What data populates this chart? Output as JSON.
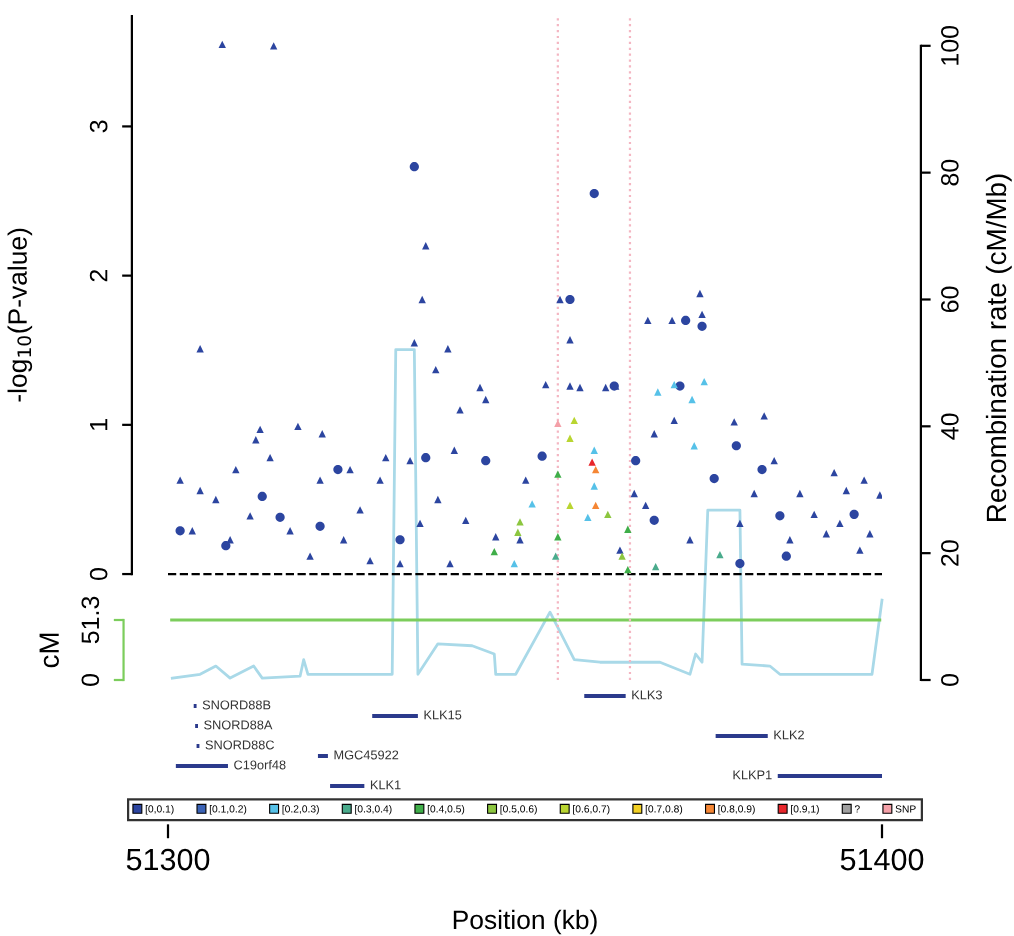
{
  "chart_data": [
    {
      "type": "scatter",
      "ylabel": "-log$_{10}$(P-value)",
      "y2label": "Recombination rate (cM/Mb)",
      "xlim": [
        51300,
        51400
      ],
      "ylim": [
        -0.71,
        3.74
      ],
      "yticks": [
        0,
        1,
        2,
        3
      ],
      "y2lim": [
        0,
        104.7
      ],
      "y2ticks": [
        0,
        20,
        40,
        60,
        80,
        100
      ],
      "tick_labels": "y",
      "legend": "bottom",
      "ref_lines": [
        {
          "axis": "y",
          "value": 0,
          "color": "#000000",
          "line_style": "dashed"
        },
        {
          "axis": "x",
          "value": 51354.6,
          "color": "#f4b6c2",
          "line_style": "dotted"
        },
        {
          "axis": "x",
          "value": 51364.7,
          "color": "#f4b6c2",
          "line_style": "dotted"
        }
      ],
      "series": [
        {
          "type": "line",
          "axis": "y2",
          "color": "#a9d9e8",
          "x": [
            51300.6,
            51304.5,
            51306.7,
            51308.7,
            51312.0,
            51313.2,
            51318.5,
            51319.0,
            51319.6,
            51321.3,
            51331.4,
            51331.9,
            51334.5,
            51335.0,
            51337.8,
            51342.6,
            51345.7,
            51345.9,
            51348.7,
            51353.5,
            51356.9,
            51360.5,
            51368.9,
            51373.1,
            51373.9,
            51374.8,
            51375.6,
            51380.1,
            51380.4,
            51384.3,
            51385.7,
            51398.6,
            51400.0
          ],
          "values": [
            0.3,
            0.9,
            2.2,
            0.3,
            2.2,
            0.3,
            0.6,
            3.2,
            0.9,
            0.9,
            0.9,
            52.1,
            52.1,
            0.9,
            5.7,
            5.4,
            4.1,
            0.9,
            0.9,
            10.7,
            3.2,
            2.8,
            2.8,
            0.9,
            4.1,
            2.8,
            26.8,
            26.8,
            2.5,
            2.2,
            0.9,
            0.9,
            12.6
          ]
        },
        {
          "name": "[0,0.1)",
          "color": "#2c45a0",
          "marker": "triangle",
          "x": [
            51307.6,
            51314.8,
            51304.5,
            51336.1,
            51335.6,
            51334.5,
            51339.2,
            51337.5,
            51312.9,
            51318.2,
            51321.6,
            51312.3,
            51301.7,
            51304.5,
            51309.5,
            51314.3,
            51321.3,
            51325.5,
            51329.7,
            51330.5,
            51343.7,
            51344.5,
            51340.9,
            51340.1,
            51341.7,
            51337.8,
            51333.9,
            51303.4,
            51308.7,
            51317.1,
            51324.6,
            51328.3,
            51332.5,
            51345.9,
            51354.9,
            51374.5,
            51374.8,
            51367.2,
            51370.6,
            51356.3,
            51352.9,
            51356.3,
            51357.7,
            51361.3,
            51362.7,
            51383.5,
            51379.3,
            51370.9,
            51368.1,
            51384.9,
            51382.1,
            51393.3,
            51395.0,
            51397.5,
            51399.7,
            51388.5,
            51390.5,
            51398.3,
            51392.2,
            51350.1,
            51365.3,
            51366.9,
            51349.3,
            51363.3,
            51373.1,
            51380.1,
            51387.1,
            51394.1,
            51396.9,
            51319.9,
            51311.5,
            51306.7,
            51326.9,
            51335.3,
            51339.5
          ],
          "values": [
            3.55,
            3.54,
            1.51,
            2.2,
            1.84,
            1.55,
            1.51,
            1.37,
            0.97,
            0.99,
            0.94,
            0.9,
            0.63,
            0.56,
            0.7,
            0.78,
            0.63,
            0.7,
            0.63,
            0.78,
            1.25,
            1.17,
            1.1,
            0.83,
            0.36,
            0.5,
            0.76,
            0.29,
            0.23,
            0.29,
            0.23,
            0.09,
            0.07,
            0.25,
            1.84,
            1.88,
            1.74,
            1.7,
            1.7,
            1.57,
            1.27,
            1.26,
            1.25,
            1.25,
            1.26,
            1.06,
            1.02,
            1.03,
            0.94,
            0.76,
            0.54,
            0.68,
            0.56,
            0.63,
            0.53,
            0.54,
            0.4,
            0.27,
            0.27,
            0.63,
            0.54,
            0.46,
            0.23,
            0.16,
            0.23,
            0.34,
            0.23,
            0.34,
            0.16,
            0.12,
            0.39,
            0.5,
            0.43,
            0.34,
            0.07
          ]
        },
        {
          "color": "#2c45a0",
          "marker": "circle",
          "x": [
            51359.7,
            51356.3,
            51374.8,
            51372.5,
            51362.5,
            51371.7,
            51352.4,
            51365.5,
            51379.6,
            51383.2,
            51385.7,
            51376.5,
            51368.1,
            51396.1,
            51386.6,
            51380.1,
            51334.5,
            51313.2,
            51323.8,
            51344.5,
            51336.1,
            51308.1,
            51315.7,
            51332.5,
            51321.3,
            51301.7
          ],
          "values": [
            2.55,
            1.84,
            1.66,
            1.7,
            1.26,
            1.26,
            0.79,
            0.76,
            0.86,
            0.7,
            0.39,
            0.64,
            0.36,
            0.4,
            0.12,
            0.07,
            2.73,
            0.52,
            0.7,
            0.76,
            0.78,
            0.19,
            0.38,
            0.23,
            0.32,
            0.29
          ]
        },
        {
          "name": "[0.1,0.2)",
          "color": "#3a62b5",
          "marker": "triangle"
        },
        {
          "name": "[0.2,0.3)",
          "color": "#56c1e8",
          "marker": "triangle",
          "x": [
            51359.7,
            51358.8,
            51351.0,
            51348.5,
            51368.6,
            51370.9,
            51375.1,
            51373.7,
            51359.7,
            51373.4
          ],
          "values": [
            0.83,
            0.38,
            0.47,
            0.07,
            1.22,
            1.27,
            1.29,
            0.86,
            0.59,
            1.17
          ]
        },
        {
          "name": "[0.3,0.4)",
          "color": "#4aab8c",
          "marker": "triangle",
          "x": [
            51354.3,
            51368.3,
            51377.3
          ],
          "values": [
            0.12,
            0.05,
            0.13
          ]
        },
        {
          "name": "[0.4,0.5)",
          "color": "#3fae49",
          "marker": "triangle",
          "x": [
            51354.6,
            51354.6,
            51364.4,
            51364.4,
            51345.7
          ],
          "values": [
            0.67,
            0.25,
            0.03,
            0.3,
            0.15
          ]
        },
        {
          "name": "[0.5,0.6)",
          "color": "#8cc63f",
          "marker": "triangle",
          "x": [
            51349.3,
            51361.6,
            51363.6,
            51349.0
          ],
          "values": [
            0.35,
            0.4,
            0.12,
            0.28
          ]
        },
        {
          "name": "[0.6,0.7)",
          "color": "#b9d531",
          "marker": "triangle",
          "x": [
            51356.9,
            51356.3,
            51356.3
          ],
          "values": [
            1.03,
            0.91,
            0.46
          ]
        },
        {
          "name": "[0.7,0.8)",
          "color": "#f2d024",
          "marker": "triangle"
        },
        {
          "name": "[0.8,0.9)",
          "color": "#f58634",
          "marker": "triangle",
          "x": [
            51359.9,
            51359.9
          ],
          "values": [
            0.7,
            0.46
          ]
        },
        {
          "name": "[0.9,1)",
          "color": "#e8262b",
          "marker": "triangle",
          "x": [
            51359.4
          ],
          "values": [
            0.75
          ]
        },
        {
          "name": "?",
          "color": "#a0a0a0",
          "marker": "triangle"
        },
        {
          "name": "SNP",
          "color": "#f4a0a8",
          "marker": "triangle",
          "x": [
            51354.6
          ],
          "values": [
            1.01
          ]
        }
      ]
    },
    {
      "type": "line",
      "ylabel": "cM",
      "xlim": [
        51300,
        51400
      ],
      "ylim": [
        0,
        51.3
      ],
      "yticks": [
        0,
        51.3
      ],
      "tick_labels": "y",
      "x": [
        51300.5,
        51399.7
      ],
      "values": [
        51.3,
        51.3
      ],
      "color": "#7ccd5c"
    },
    {
      "type": "bar",
      "orientation": "horizontal",
      "xlabel": "Position (kb)",
      "xlim": [
        51300,
        51400
      ],
      "xticks": [
        51300,
        51400
      ],
      "tick_labels": "x",
      "color": "#2b3a8c",
      "categories": [
        "KLK3",
        "SNORD88B",
        "KLK15",
        "SNORD88A",
        "KLK2",
        "SNORD88C",
        "MGC45922",
        "C19orf48",
        "KLKP1",
        "KLK1"
      ],
      "base": [
        51358.3,
        51303.6,
        51328.6,
        51303.8,
        51376.7,
        51304.0,
        51321.0,
        51301.1,
        51385.4,
        51322.7
      ],
      "values": [
        5.8,
        0.4,
        6.4,
        0.4,
        7.3,
        0.4,
        1.4,
        7.3,
        14.6,
        4.8
      ]
    }
  ]
}
